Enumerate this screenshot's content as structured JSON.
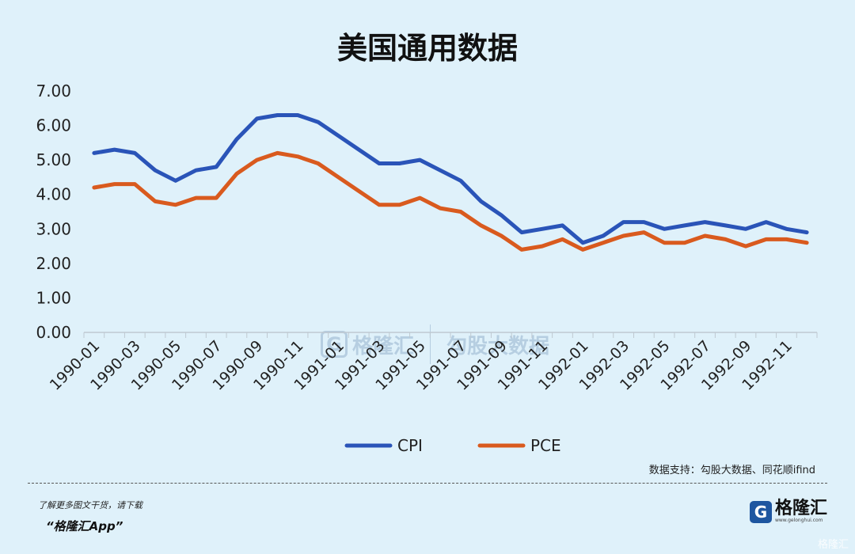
{
  "chart_data": {
    "type": "line",
    "title": "美国通用数据",
    "categories": [
      "1990-01",
      "1990-02",
      "1990-03",
      "1990-04",
      "1990-05",
      "1990-06",
      "1990-07",
      "1990-08",
      "1990-09",
      "1990-10",
      "1990-11",
      "1990-12",
      "1991-01",
      "1991-02",
      "1991-03",
      "1991-04",
      "1991-05",
      "1991-06",
      "1991-07",
      "1991-08",
      "1991-09",
      "1991-10",
      "1991-11",
      "1991-12",
      "1992-01",
      "1992-02",
      "1992-03",
      "1992-04",
      "1992-05",
      "1992-06",
      "1992-07",
      "1992-08",
      "1992-09",
      "1992-10",
      "1992-11",
      "1992-12"
    ],
    "tick_labels": [
      "1990-01",
      "1990-03",
      "1990-05",
      "1990-07",
      "1990-09",
      "1990-11",
      "1991-01",
      "1991-03",
      "1991-05",
      "1991-07",
      "1991-09",
      "1991-11",
      "1992-01",
      "1992-03",
      "1992-05",
      "1992-07",
      "1992-09",
      "1992-11"
    ],
    "y_tick_labels": [
      "0.00",
      "1.00",
      "2.00",
      "3.00",
      "4.00",
      "5.00",
      "6.00",
      "7.00"
    ],
    "ylim": [
      0,
      7
    ],
    "xlabel": "",
    "ylabel": "",
    "series": [
      {
        "name": "CPI",
        "color": "#2a54b8",
        "values": [
          5.2,
          5.3,
          5.2,
          4.7,
          4.4,
          4.7,
          4.8,
          5.6,
          6.2,
          6.3,
          6.3,
          6.1,
          5.7,
          5.3,
          4.9,
          4.9,
          5.0,
          4.7,
          4.4,
          3.8,
          3.4,
          2.9,
          3.0,
          3.1,
          2.6,
          2.8,
          3.2,
          3.2,
          3.0,
          3.1,
          3.2,
          3.1,
          3.0,
          3.2,
          3.0,
          2.9
        ]
      },
      {
        "name": "PCE",
        "color": "#d95a1e",
        "values": [
          4.2,
          4.3,
          4.3,
          3.8,
          3.7,
          3.9,
          3.9,
          4.6,
          5.0,
          5.2,
          5.1,
          4.9,
          4.5,
          4.1,
          3.7,
          3.7,
          3.9,
          3.6,
          3.5,
          3.1,
          2.8,
          2.4,
          2.5,
          2.7,
          2.4,
          2.6,
          2.8,
          2.9,
          2.6,
          2.6,
          2.8,
          2.7,
          2.5,
          2.7,
          2.7,
          2.6
        ]
      }
    ],
    "legend_position": "bottom"
  },
  "source_text": "数据支持：勾股大数据、同花顺ifind",
  "footer": {
    "line1": "了解更多图文干货，请下载",
    "line2": "“格隆汇App”"
  },
  "logo": {
    "mark": "G",
    "name": "格隆汇",
    "sub": "www.gelonghui.com"
  },
  "watermark": {
    "mark": "G",
    "brand": "格隆汇",
    "partner": "勾股大数据"
  },
  "corner_mark": "格隆汇"
}
